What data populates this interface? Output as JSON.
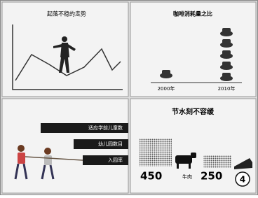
{
  "panels": [
    {
      "title": "起落不稳的走势"
    },
    {
      "title": "咖啡消耗量之比",
      "labels": [
        "2000年",
        "2010年"
      ]
    },
    {
      "bars": [
        "适应学前儿童数",
        "幼儿园数目",
        "入园率"
      ]
    },
    {
      "title": "节水刻不容缓",
      "items": [
        {
          "value": "450",
          "label": "牛肉"
        },
        {
          "value": "250"
        }
      ],
      "badge": "4"
    }
  ]
}
